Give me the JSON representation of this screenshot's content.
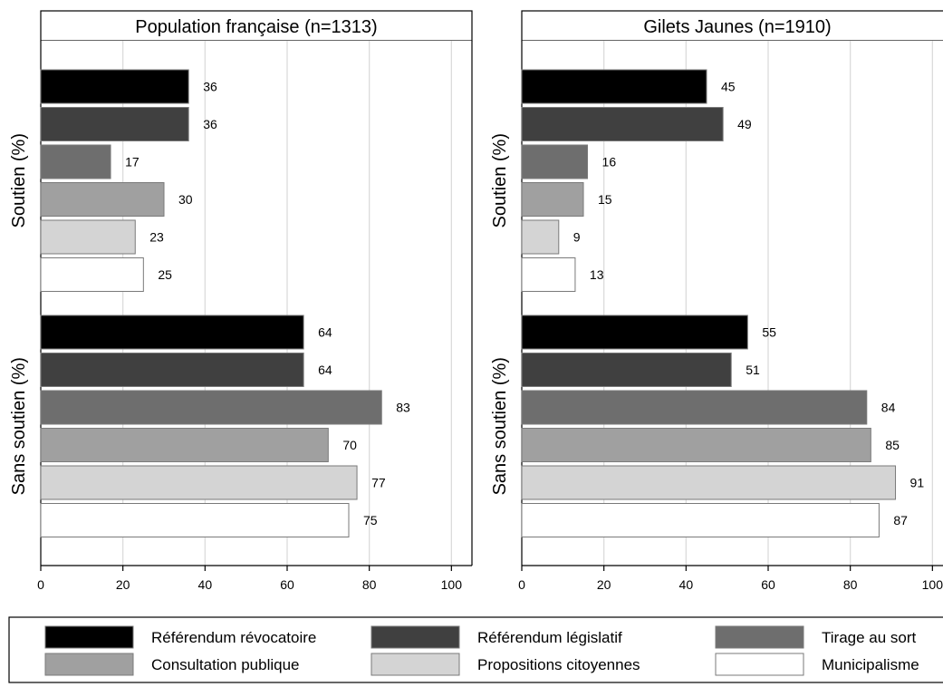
{
  "chart_data": {
    "type": "bar",
    "orientation": "horizontal",
    "groups": [
      "Soutien (%)",
      "Sans soutien (%)"
    ],
    "series": [
      {
        "name": "Référendum révocatoire",
        "color": "#000000"
      },
      {
        "name": "Référendum législatif",
        "color": "#404040"
      },
      {
        "name": "Tirage au sort",
        "color": "#6e6e6e"
      },
      {
        "name": "Consultation publique",
        "color": "#a0a0a0"
      },
      {
        "name": "Propositions citoyennes",
        "color": "#d4d4d4"
      },
      {
        "name": "Municipalisme",
        "color": "#ffffff"
      }
    ],
    "panels": [
      {
        "title": "Population française (n=1313)",
        "values": [
          [
            36,
            36,
            17,
            30,
            23,
            25
          ],
          [
            64,
            64,
            83,
            70,
            77,
            75
          ]
        ]
      },
      {
        "title": "Gilets Jaunes (n=1910)",
        "values": [
          [
            45,
            49,
            16,
            15,
            9,
            13
          ],
          [
            55,
            51,
            84,
            85,
            91,
            87
          ]
        ]
      }
    ],
    "xlim": [
      0,
      105
    ],
    "xticks": [
      0,
      20,
      40,
      60,
      80,
      100
    ],
    "grid": "vertical",
    "legend_position": "bottom"
  }
}
